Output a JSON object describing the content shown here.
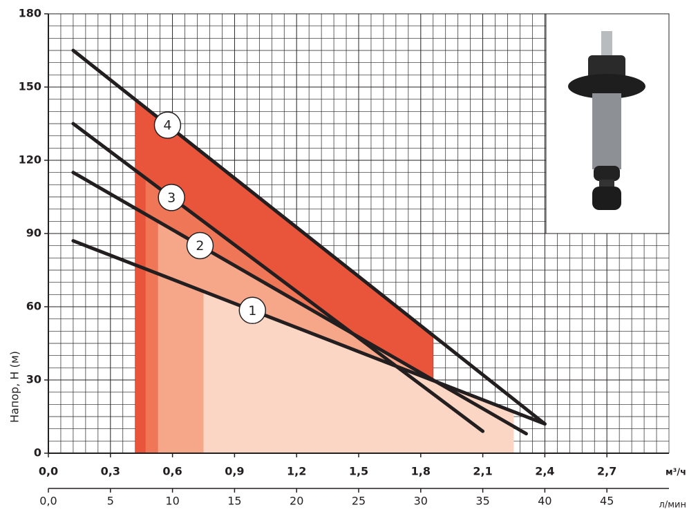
{
  "chart_data": {
    "type": "line",
    "y_label": "Напор, H (м)",
    "x_label": "м³/ч",
    "x2_label": "л/мин",
    "xlim": [
      0,
      3
    ],
    "xticks": [
      {
        "value": 0,
        "label": "0,0"
      },
      {
        "value": 0.3,
        "label": "0,3"
      },
      {
        "value": 0.6,
        "label": "0,6"
      },
      {
        "value": 0.9,
        "label": "0,9"
      },
      {
        "value": 1.2,
        "label": "1,2"
      },
      {
        "value": 1.5,
        "label": "1,5"
      },
      {
        "value": 1.8,
        "label": "1,8"
      },
      {
        "value": 2.1,
        "label": "2,1"
      },
      {
        "value": 2.4,
        "label": "2,4"
      },
      {
        "value": 2.7,
        "label": "2,7"
      }
    ],
    "x2lim": [
      0,
      50
    ],
    "x2ticks": [
      {
        "value": 0,
        "label": "0,0"
      },
      5,
      10,
      15,
      20,
      25,
      30,
      35,
      40,
      45
    ],
    "ylim": [
      0,
      180
    ],
    "yticks": [
      0,
      30,
      60,
      90,
      120,
      150,
      180
    ],
    "grid": true,
    "series": [
      {
        "name": "4",
        "color": "#231f20",
        "fill": "#e8553b",
        "x": [
          0.12,
          2.4
        ],
        "values": [
          165,
          12
        ],
        "range": [
          0.42,
          1.86
        ]
      },
      {
        "name": "3",
        "color": "#231f20",
        "fill": "#ef7657",
        "x": [
          0.12,
          2.1
        ],
        "values": [
          135,
          9
        ],
        "range": [
          0.47,
          1.95
        ]
      },
      {
        "name": "2",
        "color": "#231f20",
        "fill": "#f6a689",
        "x": [
          0.12,
          2.31
        ],
        "values": [
          115,
          8
        ],
        "range": [
          0.53,
          2.2
        ]
      },
      {
        "name": "1",
        "color": "#231f20",
        "fill": "#fcd6c4",
        "x": [
          0.12,
          2.4
        ],
        "values": [
          87,
          12
        ],
        "range": [
          0.75,
          2.25
        ]
      }
    ]
  }
}
